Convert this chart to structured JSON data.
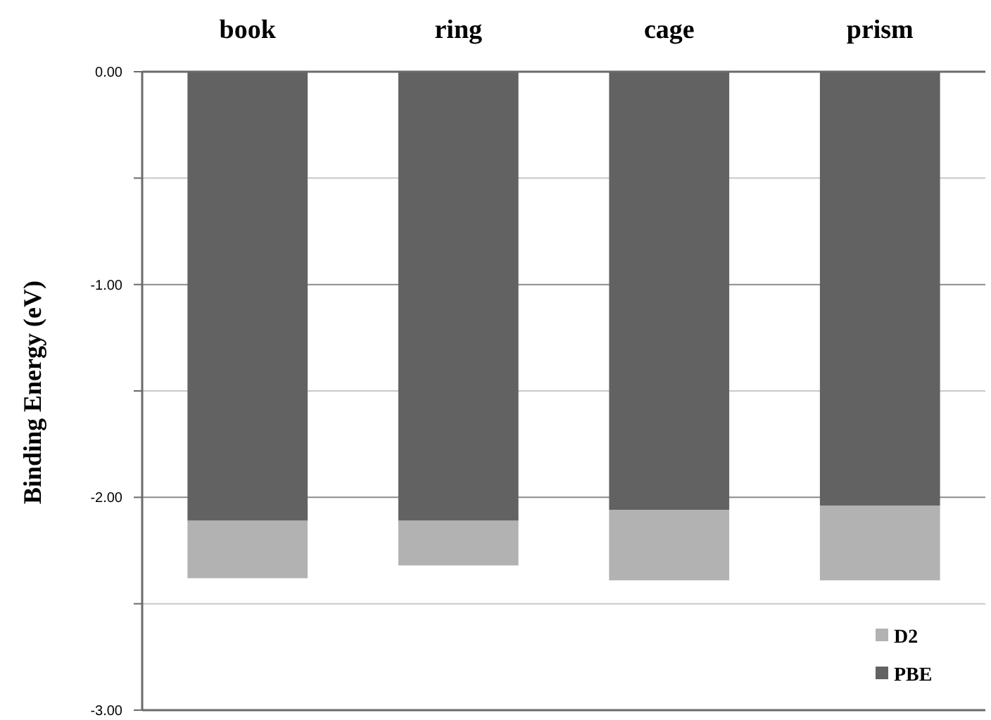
{
  "chart_data": {
    "type": "bar",
    "stacked": true,
    "ylabel": "Binding Energy (eV)",
    "categories": [
      "book",
      "ring",
      "cage",
      "prism"
    ],
    "series": [
      {
        "name": "PBE",
        "color": "#626262",
        "values": [
          -2.11,
          -2.11,
          -2.06,
          -2.04
        ]
      },
      {
        "name": "D2",
        "color": "#b2b2b2",
        "values": [
          -0.27,
          -0.21,
          -0.33,
          -0.35
        ]
      }
    ],
    "ylim": [
      -3,
      0
    ],
    "yticks": [
      {
        "value": 0,
        "label": "0.00"
      },
      {
        "value": -0.5,
        "label": null
      },
      {
        "value": -1,
        "label": "-1.00"
      },
      {
        "value": -1.5,
        "label": null
      },
      {
        "value": -2,
        "label": "-2.00"
      },
      {
        "value": -2.5,
        "label": null
      },
      {
        "value": -3,
        "label": "-3.00"
      }
    ],
    "grid": "y",
    "legend": "bottom right"
  }
}
